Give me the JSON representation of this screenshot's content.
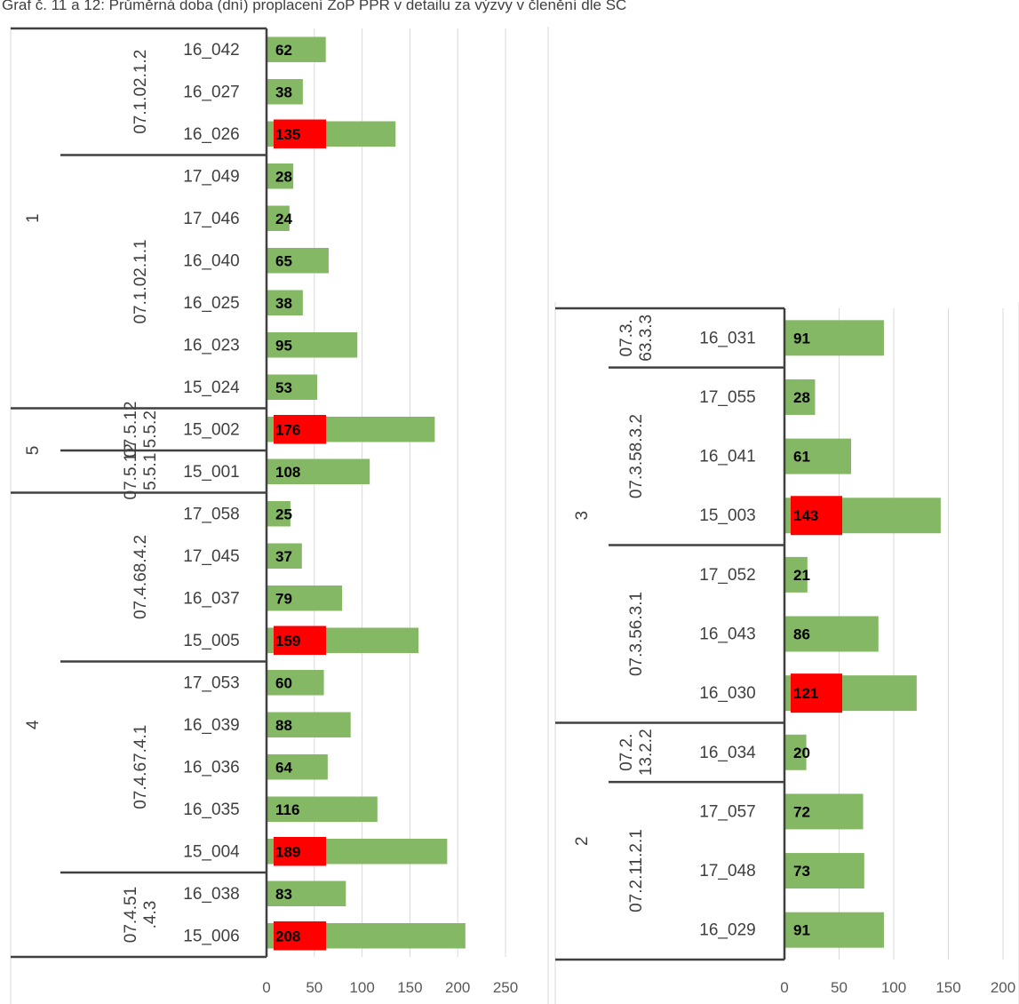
{
  "caption": "Graf č. 11 a 12: Průměrná doba (dní) proplacení ŽoP PPR v detailu za výzvy v členění dle SC",
  "colors": {
    "bar": "#84b865",
    "highlight": "#ff0000",
    "grid": "#d9d9d9",
    "border": "#404040"
  },
  "chart_data": [
    {
      "type": "bar",
      "orientation": "horizontal",
      "title": "",
      "xlim": [
        0,
        250
      ],
      "x_ticks": [
        "0",
        "50",
        "100",
        "150",
        "200",
        "250"
      ],
      "grid": true,
      "groups": [
        {
          "label": "1",
          "subgroups": [
            {
              "label": "07.1.02.1.2",
              "rows": [
                {
                  "category": "16_042",
                  "value": 62,
                  "highlight": false
                },
                {
                  "category": "16_027",
                  "value": 38,
                  "highlight": false
                },
                {
                  "category": "16_026",
                  "value": 135,
                  "highlight": true
                }
              ]
            },
            {
              "label": "07.1.02.1.1",
              "rows": [
                {
                  "category": "17_049",
                  "value": 28,
                  "highlight": false
                },
                {
                  "category": "17_046",
                  "value": 24,
                  "highlight": false
                },
                {
                  "category": "16_040",
                  "value": 65,
                  "highlight": false
                },
                {
                  "category": "16_025",
                  "value": 38,
                  "highlight": false
                },
                {
                  "category": "16_023",
                  "value": 95,
                  "highlight": false
                },
                {
                  "category": "15_024",
                  "value": 53,
                  "highlight": false
                }
              ]
            }
          ]
        },
        {
          "label": "5",
          "subgroups": [
            {
              "label": "07.5.125.5.2",
              "rows": [
                {
                  "category": "15_002",
                  "value": 176,
                  "highlight": true
                }
              ]
            },
            {
              "label": "07.5.125.5.1",
              "rows": [
                {
                  "category": "15_001",
                  "value": 108,
                  "highlight": false
                }
              ]
            }
          ]
        },
        {
          "label": "4",
          "subgroups": [
            {
              "label": "07.4.68.4.2",
              "rows": [
                {
                  "category": "17_058",
                  "value": 25,
                  "highlight": false
                },
                {
                  "category": "17_045",
                  "value": 37,
                  "highlight": false
                },
                {
                  "category": "16_037",
                  "value": 79,
                  "highlight": false
                },
                {
                  "category": "15_005",
                  "value": 159,
                  "highlight": true
                }
              ]
            },
            {
              "label": "07.4.67.4.1",
              "rows": [
                {
                  "category": "17_053",
                  "value": 60,
                  "highlight": false
                },
                {
                  "category": "16_039",
                  "value": 88,
                  "highlight": false
                },
                {
                  "category": "16_036",
                  "value": 64,
                  "highlight": false
                },
                {
                  "category": "16_035",
                  "value": 116,
                  "highlight": false
                },
                {
                  "category": "15_004",
                  "value": 189,
                  "highlight": true
                }
              ]
            },
            {
              "label": "07.4.51.4.3",
              "rows": [
                {
                  "category": "16_038",
                  "value": 83,
                  "highlight": false
                },
                {
                  "category": "15_006",
                  "value": 208,
                  "highlight": true
                }
              ]
            }
          ]
        }
      ]
    },
    {
      "type": "bar",
      "orientation": "horizontal",
      "title": "",
      "xlim": [
        0,
        200
      ],
      "x_ticks": [
        "0",
        "50",
        "100",
        "150",
        "200"
      ],
      "grid": true,
      "groups": [
        {
          "label": "3",
          "subgroups": [
            {
              "label": "07.3.63.3.3",
              "rows": [
                {
                  "category": "16_031",
                  "value": 91,
                  "highlight": false
                }
              ]
            },
            {
              "label": "07.3.58.3.2",
              "rows": [
                {
                  "category": "17_055",
                  "value": 28,
                  "highlight": false
                },
                {
                  "category": "16_041",
                  "value": 61,
                  "highlight": false
                },
                {
                  "category": "15_003",
                  "value": 143,
                  "highlight": true
                }
              ]
            },
            {
              "label": "07.3.56.3.1",
              "rows": [
                {
                  "category": "17_052",
                  "value": 21,
                  "highlight": false
                },
                {
                  "category": "16_043",
                  "value": 86,
                  "highlight": false
                },
                {
                  "category": "16_030",
                  "value": 121,
                  "highlight": true
                }
              ]
            }
          ]
        },
        {
          "label": "2",
          "subgroups": [
            {
              "label": "07.2.13.2.2",
              "rows": [
                {
                  "category": "16_034",
                  "value": 20,
                  "highlight": false
                }
              ]
            },
            {
              "label": "07.2.11.2.1",
              "rows": [
                {
                  "category": "17_057",
                  "value": 72,
                  "highlight": false
                },
                {
                  "category": "17_048",
                  "value": 73,
                  "highlight": false
                },
                {
                  "category": "16_029",
                  "value": 91,
                  "highlight": false
                }
              ]
            }
          ]
        }
      ]
    }
  ]
}
